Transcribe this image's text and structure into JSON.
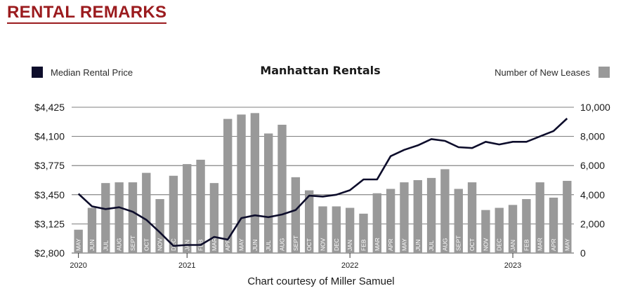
{
  "heading": "RENTAL REMARKS",
  "colors": {
    "heading": "#9b1b1e",
    "bar": "#999999",
    "line": "#0d0d2b",
    "grid": "#555555"
  },
  "chart_data": {
    "type": "bar+line",
    "title": "Manhattan Rentals",
    "legend": {
      "line_label": "Median Rental Price",
      "bar_label": "Number of New Leases"
    },
    "categories": [
      "MAY",
      "JUN",
      "JUL",
      "AUG",
      "SEPT",
      "OCT",
      "NOV",
      "DEC",
      "JAN",
      "FEB",
      "MAR",
      "APR",
      "MAY",
      "JUN",
      "JUL",
      "AUG",
      "SEPT",
      "OCT",
      "NOV",
      "DEC",
      "JAN",
      "FEB",
      "MAR",
      "APR",
      "MAY",
      "JUN",
      "JUL",
      "AUG",
      "SEPT",
      "OCT",
      "NOV",
      "DEC",
      "JAN",
      "FEB",
      "MAR",
      "APR",
      "MAY"
    ],
    "years": [
      {
        "label": "2020",
        "index": 0
      },
      {
        "label": "2021",
        "index": 8
      },
      {
        "label": "2022",
        "index": 20
      },
      {
        "label": "2023",
        "index": 32
      }
    ],
    "series": [
      {
        "name": "Number of New Leases",
        "type": "bar",
        "axis": "right",
        "values": [
          1600,
          3100,
          4800,
          4850,
          4850,
          5500,
          3700,
          5300,
          6100,
          6400,
          4800,
          9200,
          9500,
          9600,
          8200,
          8800,
          5200,
          4300,
          3200,
          3200,
          3100,
          2700,
          4100,
          4400,
          4850,
          5000,
          5150,
          5750,
          4400,
          4850,
          2950,
          3100,
          3300,
          3700,
          4850,
          3800,
          4950
        ]
      },
      {
        "name": "Median Rental Price",
        "type": "line",
        "axis": "left",
        "values": [
          3460,
          3320,
          3290,
          3310,
          3260,
          3170,
          3030,
          2880,
          2890,
          2890,
          2980,
          2950,
          3190,
          3220,
          3200,
          3230,
          3280,
          3440,
          3430,
          3450,
          3500,
          3620,
          3620,
          3880,
          3950,
          4000,
          4070,
          4050,
          3980,
          3970,
          4040,
          4010,
          4040,
          4040,
          4100,
          4160,
          4300
        ]
      }
    ],
    "left_axis": {
      "ticks": [
        "$2,800",
        "$3,125",
        "$3,450",
        "$3,775",
        "$4,100",
        "$4,425"
      ],
      "min": 2800,
      "max": 4425
    },
    "right_axis": {
      "ticks": [
        "0",
        "2,000",
        "4,000",
        "6,000",
        "8,000",
        "10,000"
      ],
      "min": 0,
      "max": 10000
    },
    "caption": "Chart courtesy of Miller Samuel"
  }
}
